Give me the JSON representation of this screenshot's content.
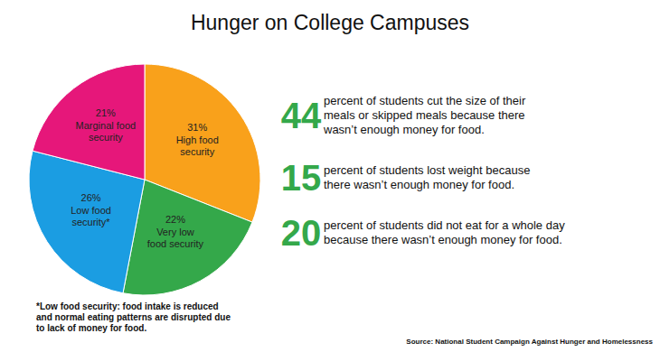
{
  "chart_data": {
    "type": "pie",
    "title": "Hunger on College Campuses",
    "categories": [
      "High food security",
      "Very low food security",
      "Low food security*",
      "Marginal food security"
    ],
    "values": [
      31,
      22,
      26,
      21
    ],
    "value_labels": [
      "31%",
      "22%",
      "26%",
      "21%"
    ],
    "colors": [
      "#f9a11b",
      "#34a84a",
      "#1b9de2",
      "#e6177a"
    ],
    "data_labels": true,
    "annotations": [
      {
        "value": 44,
        "lines": [
          "percent of students cut the size of their",
          "meals or skipped meals because there",
          "wasn’t enough money for food."
        ]
      },
      {
        "value": 15,
        "lines": [
          "percent of students lost weight because",
          "there wasn’t enough money for food."
        ]
      },
      {
        "value": 20,
        "lines": [
          "percent of students did not eat for a whole day",
          "because there wasn’t enough money for food."
        ]
      }
    ],
    "footnote": [
      "*Low food security: food intake is reduced",
      "and normal eating patterns are disrupted due",
      "to lack of money for food."
    ],
    "source": "Source: National Student Campaign Against Hunger and Homelessness"
  }
}
